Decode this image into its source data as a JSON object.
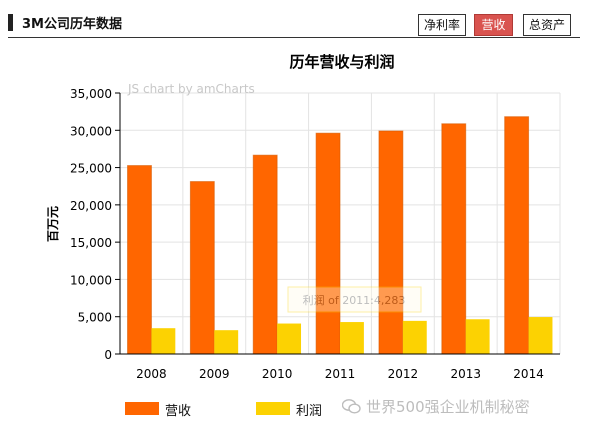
{
  "header": {
    "title": "3M公司历年数据",
    "tabs": [
      {
        "label": "净利率",
        "active": false
      },
      {
        "label": "营收",
        "active": true
      },
      {
        "label": "总资产",
        "active": false
      }
    ]
  },
  "chart_data": {
    "type": "bar",
    "title": "历年营收与利润",
    "ylabel": "百万元",
    "xlabel": "",
    "categories": [
      "2008",
      "2009",
      "2010",
      "2011",
      "2012",
      "2013",
      "2014"
    ],
    "series": [
      {
        "name": "营收",
        "color": "#ff6600",
        "values": [
          25269,
          23123,
          26662,
          29611,
          29904,
          30871,
          31821
        ]
      },
      {
        "name": "利润",
        "color": "#fcd202",
        "values": [
          3460,
          3193,
          4085,
          4283,
          4444,
          4659,
          4956
        ]
      }
    ],
    "ylim": [
      0,
      35000
    ],
    "yticks": [
      "0",
      "5,000",
      "10,000",
      "15,000",
      "20,000",
      "25,000",
      "30,000",
      "35,000"
    ],
    "grid": true,
    "legend_position": "bottom-left",
    "credit": "JS chart by amCharts",
    "tooltip": "利润 of 2011:4,283"
  },
  "watermark": "世界500强企业机制秘密"
}
